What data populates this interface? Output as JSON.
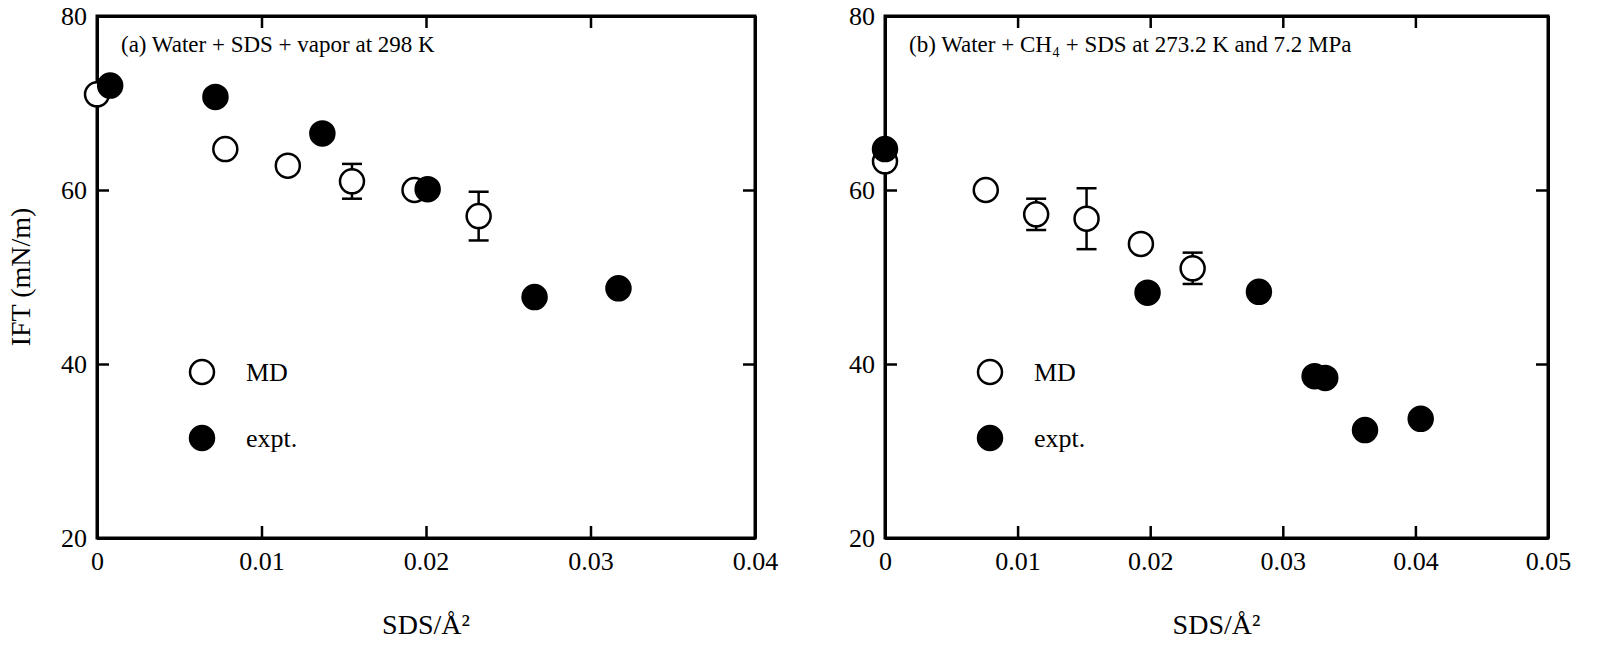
{
  "chart_data": [
    {
      "type": "scatter",
      "title": "(a) Water + SDS + vapor at 298 K",
      "x_label": "SDS/Å²",
      "y_label": "IFT (mN/m)",
      "xlim": [
        0,
        0.04
      ],
      "xticks": [
        0,
        0.01,
        0.02,
        0.03,
        0.04
      ],
      "ylim": [
        20,
        80
      ],
      "yticks": [
        20,
        40,
        60,
        80
      ],
      "legend": "lower left",
      "series": [
        {
          "name": "MD",
          "color": "#000000",
          "marker": "open-circle",
          "x": [
            0,
            0.0078,
            0.0116,
            0.0155,
            0.0193,
            0.0232
          ],
          "values": [
            71,
            64.7,
            62.8,
            61,
            60,
            57
          ],
          "errors": [
            null,
            null,
            null,
            2,
            null,
            2.8
          ]
        },
        {
          "name": "expt.",
          "color": "#000000",
          "marker": "filled-circle",
          "x": [
            0.0008,
            0.0072,
            0.0137,
            0.0201,
            0.0266,
            0.0317
          ],
          "values": [
            72,
            70.7,
            66.5,
            60.1,
            47.7,
            48.7
          ]
        }
      ]
    },
    {
      "type": "scatter",
      "title": "(b) Water + CH₄ + SDS at 273.2 K and 7.2 MPa",
      "x_label": "SDS/Å²",
      "xlim": [
        0,
        0.05
      ],
      "xticks": [
        0,
        0.01,
        0.02,
        0.03,
        0.04,
        0.05
      ],
      "ylim": [
        20,
        80
      ],
      "yticks": [
        20,
        40,
        60,
        80
      ],
      "legend": "lower left",
      "series": [
        {
          "name": "MD",
          "color": "#000000",
          "marker": "open-circle",
          "x": [
            0,
            0.0076,
            0.0114,
            0.0152,
            0.0193,
            0.0232
          ],
          "values": [
            63.3,
            60,
            57.2,
            56.7,
            53.8,
            51
          ],
          "errors": [
            null,
            null,
            1.8,
            3.5,
            null,
            1.8
          ]
        },
        {
          "name": "expt.",
          "color": "#000000",
          "marker": "filled-circle",
          "x": [
            0,
            0.0198,
            0.0282,
            0.0324,
            0.0332,
            0.0362,
            0.0404
          ],
          "values": [
            64.7,
            48.2,
            48.3,
            38.6,
            38.4,
            32.4,
            33.7
          ]
        }
      ]
    }
  ]
}
